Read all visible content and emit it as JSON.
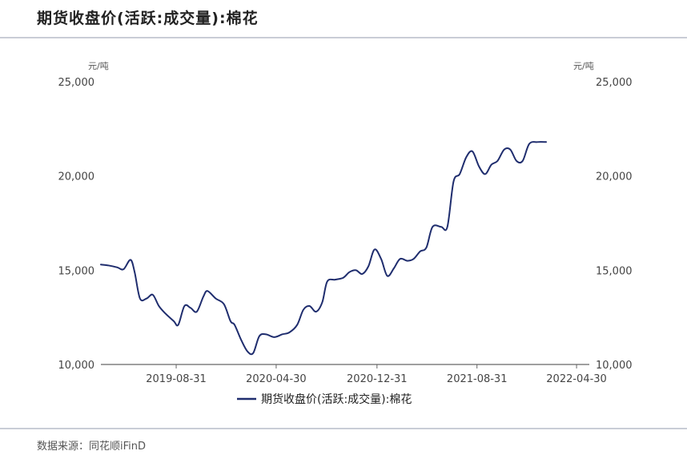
{
  "title": "期货收盘价(活跃:成交量):棉花",
  "source": "数据来源：同花顺iFinD",
  "colors": {
    "line": "#1f2d6e",
    "axis": "#666666",
    "rule": "#c9cdd6"
  },
  "chart_data": {
    "type": "line",
    "title": "期货收盘价(活跃:成交量):棉花",
    "ylabel_left": "元/吨",
    "ylabel_right": "元/吨",
    "ylim": [
      10000,
      25000
    ],
    "yticks": [
      10000,
      15000,
      20000,
      25000
    ],
    "ytick_labels": [
      "10,000",
      "15,000",
      "20,000",
      "25,000"
    ],
    "xlim": [
      "2019-03-01",
      "2022-05-31"
    ],
    "xticks": [
      "2019-08-31",
      "2020-04-30",
      "2020-12-31",
      "2021-08-31",
      "2022-04-30"
    ],
    "grid": false,
    "legend_position": "bottom-center",
    "series": [
      {
        "name": "期货收盘价(活跃:成交量):棉花",
        "color": "#1f2d6e",
        "points": [
          [
            "2019-03-01",
            15300
          ],
          [
            "2019-03-20",
            15250
          ],
          [
            "2019-04-10",
            15150
          ],
          [
            "2019-04-25",
            15050
          ],
          [
            "2019-05-12",
            15550
          ],
          [
            "2019-05-22",
            14900
          ],
          [
            "2019-06-04",
            13500
          ],
          [
            "2019-06-20",
            13500
          ],
          [
            "2019-07-05",
            13700
          ],
          [
            "2019-07-20",
            13100
          ],
          [
            "2019-08-05",
            12700
          ],
          [
            "2019-08-25",
            12300
          ],
          [
            "2019-09-05",
            12100
          ],
          [
            "2019-09-20",
            13100
          ],
          [
            "2019-10-05",
            13000
          ],
          [
            "2019-10-20",
            12800
          ],
          [
            "2019-11-05",
            13600
          ],
          [
            "2019-11-15",
            13900
          ],
          [
            "2019-12-05",
            13500
          ],
          [
            "2019-12-25",
            13200
          ],
          [
            "2020-01-10",
            12300
          ],
          [
            "2020-01-20",
            12100
          ],
          [
            "2020-02-05",
            11300
          ],
          [
            "2020-02-20",
            10700
          ],
          [
            "2020-03-05",
            10600
          ],
          [
            "2020-03-20",
            11500
          ],
          [
            "2020-04-05",
            11600
          ],
          [
            "2020-04-25",
            11450
          ],
          [
            "2020-05-15",
            11600
          ],
          [
            "2020-06-01",
            11700
          ],
          [
            "2020-06-20",
            12100
          ],
          [
            "2020-07-05",
            12900
          ],
          [
            "2020-07-20",
            13100
          ],
          [
            "2020-08-05",
            12800
          ],
          [
            "2020-08-20",
            13300
          ],
          [
            "2020-09-01",
            14400
          ],
          [
            "2020-09-20",
            14500
          ],
          [
            "2020-10-10",
            14600
          ],
          [
            "2020-10-25",
            14900
          ],
          [
            "2020-11-10",
            15000
          ],
          [
            "2020-11-25",
            14800
          ],
          [
            "2020-12-10",
            15200
          ],
          [
            "2020-12-25",
            16100
          ],
          [
            "2021-01-10",
            15600
          ],
          [
            "2021-01-25",
            14700
          ],
          [
            "2021-02-10",
            15100
          ],
          [
            "2021-02-25",
            15600
          ],
          [
            "2021-03-15",
            15500
          ],
          [
            "2021-03-30",
            15600
          ],
          [
            "2021-04-15",
            16000
          ],
          [
            "2021-04-30",
            16200
          ],
          [
            "2021-05-15",
            17300
          ],
          [
            "2021-06-05",
            17300
          ],
          [
            "2021-06-20",
            17300
          ],
          [
            "2021-07-05",
            19700
          ],
          [
            "2021-07-20",
            20100
          ],
          [
            "2021-08-05",
            21000
          ],
          [
            "2021-08-20",
            21300
          ],
          [
            "2021-09-05",
            20500
          ],
          [
            "2021-09-20",
            20100
          ],
          [
            "2021-10-05",
            20600
          ],
          [
            "2021-10-20",
            20800
          ],
          [
            "2021-11-05",
            21400
          ],
          [
            "2021-11-20",
            21400
          ],
          [
            "2021-12-05",
            20800
          ],
          [
            "2021-12-20",
            20800
          ],
          [
            "2022-01-05",
            21700
          ],
          [
            "2022-01-25",
            21800
          ],
          [
            "2022-02-15",
            21800
          ]
        ]
      }
    ]
  }
}
